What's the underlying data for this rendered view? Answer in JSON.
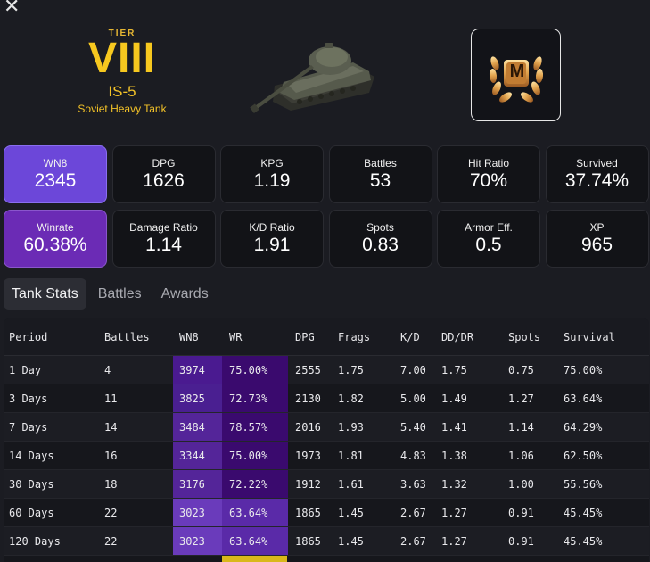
{
  "window": {
    "close_glyph": "✕"
  },
  "tank": {
    "tier_label": "TIER",
    "tier": "VIII",
    "name": "IS-5",
    "class": "Soviet Heavy Tank",
    "mastery_letter": "M"
  },
  "stats": [
    {
      "key": "wn8",
      "label": "WN8",
      "value": "2345"
    },
    {
      "key": "dpg",
      "label": "DPG",
      "value": "1626"
    },
    {
      "key": "kpg",
      "label": "KPG",
      "value": "1.19"
    },
    {
      "key": "battles",
      "label": "Battles",
      "value": "53"
    },
    {
      "key": "hit",
      "label": "Hit Ratio",
      "value": "70%"
    },
    {
      "key": "survived",
      "label": "Survived",
      "value": "37.74%"
    },
    {
      "key": "winrate",
      "label": "Winrate",
      "value": "60.38%"
    },
    {
      "key": "dmgratio",
      "label": "Damage Ratio",
      "value": "1.14"
    },
    {
      "key": "kdratio",
      "label": "K/D Ratio",
      "value": "1.91"
    },
    {
      "key": "spots",
      "label": "Spots",
      "value": "0.83"
    },
    {
      "key": "armor",
      "label": "Armor Eff.",
      "value": "0.5"
    },
    {
      "key": "xp",
      "label": "XP",
      "value": "965"
    }
  ],
  "tabs": [
    "Tank Stats",
    "Battles",
    "Awards"
  ],
  "active_tab": "Tank Stats",
  "table": {
    "headers": [
      "Period",
      "Battles",
      "WN8",
      "WR",
      "DPG",
      "Frags",
      "K/D",
      "DD/DR",
      "Spots",
      "Survival"
    ],
    "rows": [
      [
        "1 Day",
        "4",
        "3974",
        "75.00%",
        "2555",
        "1.75",
        "7.00",
        "1.75",
        "0.75",
        "75.00%"
      ],
      [
        "3 Days",
        "11",
        "3825",
        "72.73%",
        "2130",
        "1.82",
        "5.00",
        "1.49",
        "1.27",
        "63.64%"
      ],
      [
        "7 Days",
        "14",
        "3484",
        "78.57%",
        "2016",
        "1.93",
        "5.40",
        "1.41",
        "1.14",
        "64.29%"
      ],
      [
        "14 Days",
        "16",
        "3344",
        "75.00%",
        "1973",
        "1.81",
        "4.83",
        "1.38",
        "1.06",
        "62.50%"
      ],
      [
        "30 Days",
        "18",
        "3176",
        "72.22%",
        "1912",
        "1.61",
        "3.63",
        "1.32",
        "1.00",
        "55.56%"
      ],
      [
        "60 Days",
        "22",
        "3023",
        "63.64%",
        "1865",
        "1.45",
        "2.67",
        "1.27",
        "0.91",
        "45.45%"
      ],
      [
        "120 Days",
        "22",
        "3023",
        "63.64%",
        "1865",
        "1.45",
        "2.67",
        "1.27",
        "0.91",
        "45.45%"
      ]
    ]
  },
  "colors": {
    "accent_purple": "#6c47d9",
    "winrate_purple": "#6b2bb5",
    "tier_gold": "#f7c81f",
    "bar_gold": "#d9b81a"
  }
}
